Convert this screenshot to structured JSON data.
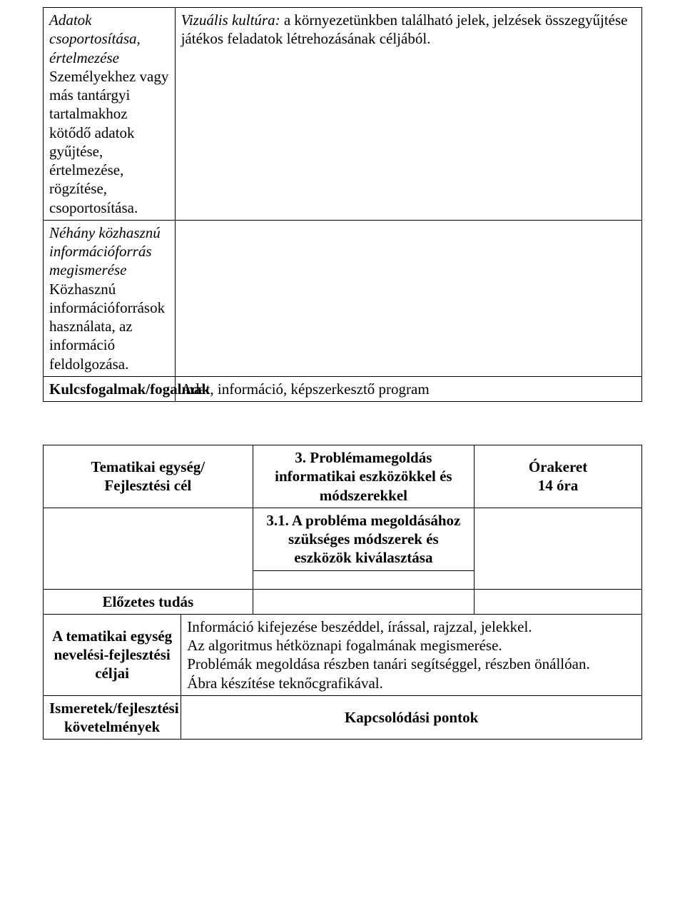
{
  "table1": {
    "row1": {
      "left_italic": "Adatok csoportosítása, értelmezése",
      "left_plain": "Személyekhez vagy más tantárgyi tartalmakhoz kötődő adatok gyűjtése, értelmezése, rögzítése, csoportosítása.",
      "right_italic": "Vizuális kultúra:",
      "right_plain": " a környezetünkben található jelek, jelzések összegyűjtése játékos feladatok létrehozásának céljából."
    },
    "row2": {
      "left_italic": "Néhány közhasznú információforrás megismerése",
      "left_plain": "Közhasznú információforrások használata, az információ feldolgozása."
    },
    "row3": {
      "left": "Kulcsfogalmak/fogalmak",
      "right": "Adat, információ, képszerkesztő program"
    }
  },
  "table2": {
    "r1": {
      "c1": "Tematikai egység/\nFejlesztési cél",
      "c2": "3. Problémamegoldás informatikai eszközökkel és módszerekkel",
      "c3": "Órakeret\n14 óra"
    },
    "r2": {
      "c2": "3.1. A probléma megoldásához szükséges módszerek és eszközök kiválasztása"
    },
    "r3": {
      "c1": "Előzetes tudás"
    },
    "r4": {
      "c1": "A tematikai egység nevelési-fejlesztési céljai",
      "c2": "Információ kifejezése beszéddel, írással, rajzzal, jelekkel.\nAz algoritmus hétköznapi fogalmának megismerése.\nProblémák megoldása részben tanári segítséggel, részben önállóan.\nÁbra készítése teknőcgrafikával."
    },
    "r5": {
      "c1": "Ismeretek/fejlesztési követelmények",
      "c2": "Kapcsolódási pontok"
    }
  }
}
